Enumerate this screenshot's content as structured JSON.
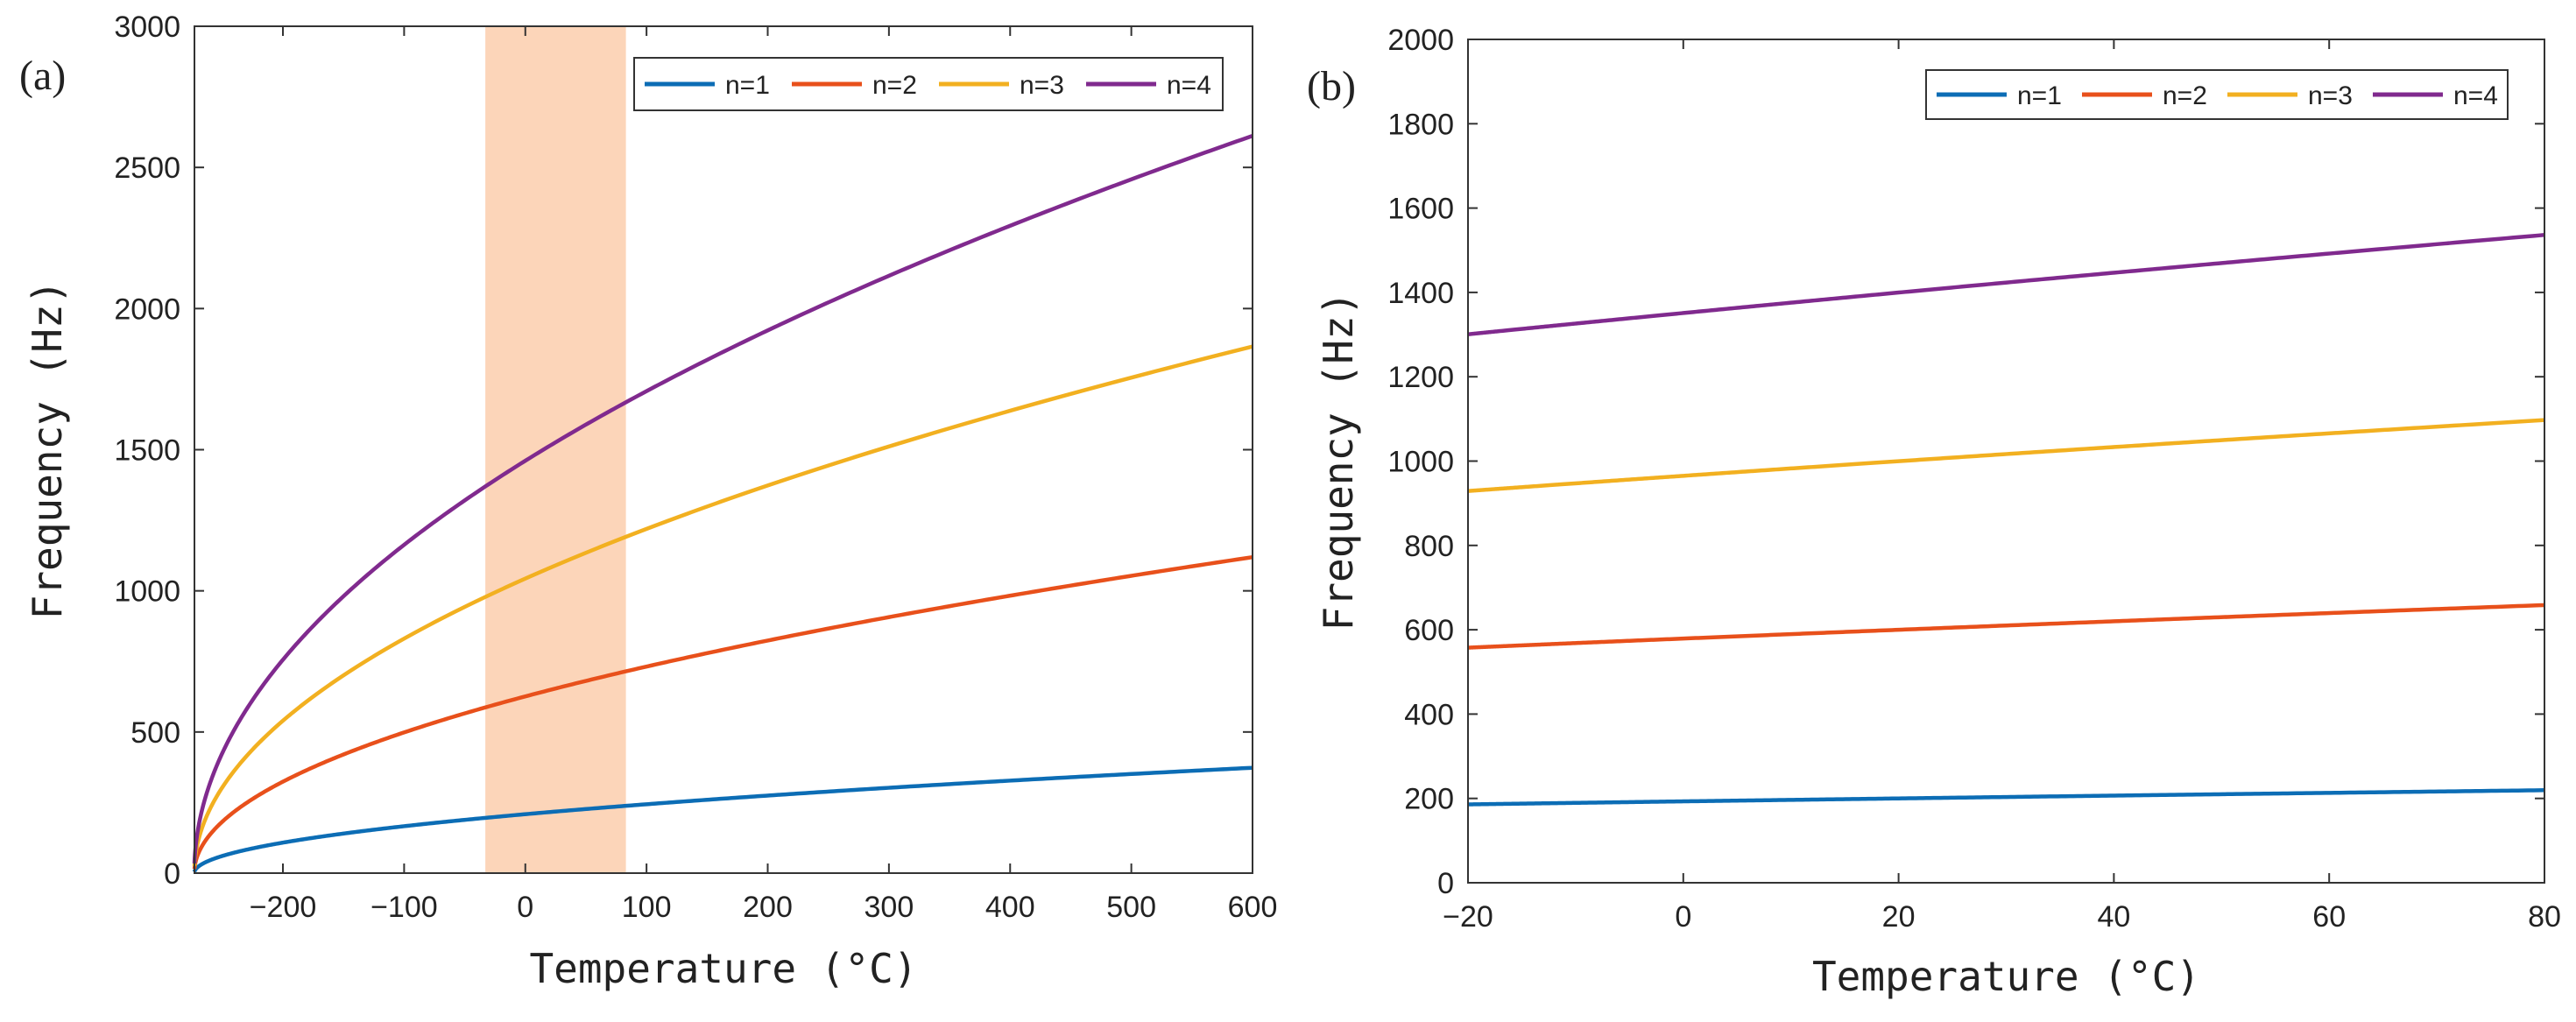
{
  "chart_data": [
    {
      "panel_label": "(a)",
      "type": "line",
      "xlabel": "Temperature (°C)",
      "ylabel": "Frequency (Hz)",
      "xlim": [
        -273,
        600
      ],
      "ylim": [
        0,
        3000
      ],
      "xticks": [
        "-200",
        "-100",
        "0",
        "100",
        "200",
        "300",
        "400",
        "500",
        "600"
      ],
      "yticks": [
        "0",
        "500",
        "1000",
        "1500",
        "2000",
        "2500",
        "3000"
      ],
      "grid": false,
      "legend": "top-right, horizontal, boxed",
      "highlight_band": {
        "x_range": [
          -33,
          83
        ],
        "color": "#fcd5b9"
      },
      "curve_model": "f_n = k_n * sqrt(T + 273.15)",
      "series": [
        {
          "name": "n=1",
          "color": "#0c6db5",
          "coefficient": 12.63
        },
        {
          "name": "n=2",
          "color": "#e8501b",
          "coefficient": 37.88
        },
        {
          "name": "n=3",
          "color": "#f2b020",
          "coefficient": 63.13
        },
        {
          "name": "n=4",
          "color": "#802a8e",
          "coefficient": 88.39
        }
      ]
    },
    {
      "panel_label": "(b)",
      "type": "line",
      "xlabel": "Temperature (°C)",
      "ylabel": "Frequency (Hz)",
      "xlim": [
        -20,
        80
      ],
      "ylim": [
        0,
        2000
      ],
      "xticks": [
        "-20",
        "0",
        "20",
        "40",
        "60",
        "80"
      ],
      "yticks": [
        "0",
        "200",
        "400",
        "600",
        "800",
        "1000",
        "1200",
        "1400",
        "1600",
        "1800",
        "2000"
      ],
      "grid": false,
      "legend": "top-right, horizontal, boxed",
      "curve_model": "f_n = k_n * sqrt(T + 273.15)",
      "series": [
        {
          "name": "n=1",
          "color": "#0c6db5",
          "coefficient": 11.68
        },
        {
          "name": "n=2",
          "color": "#e8501b",
          "coefficient": 35.04
        },
        {
          "name": "n=3",
          "color": "#f2b020",
          "coefficient": 58.39
        },
        {
          "name": "n=4",
          "color": "#802a8e",
          "coefficient": 81.75
        }
      ]
    }
  ]
}
